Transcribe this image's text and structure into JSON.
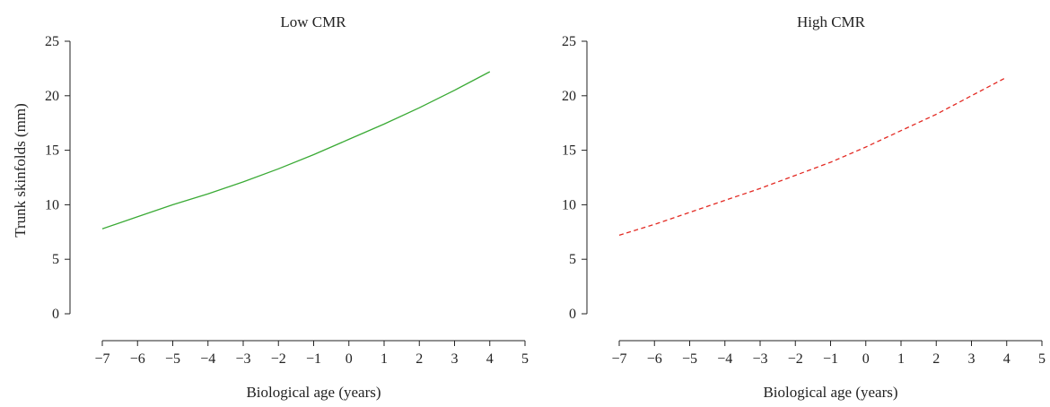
{
  "chart_data": [
    {
      "type": "line",
      "title": "Low CMR",
      "xlabel": "Biological age (years)",
      "ylabel": "Trunk skinfolds (mm)",
      "xlim": [
        -7,
        5
      ],
      "ylim": [
        0,
        25
      ],
      "xticks": [
        "−7",
        "−6",
        "−5",
        "−4",
        "−3",
        "−2",
        "−1",
        "0",
        "1",
        "2",
        "3",
        "4",
        "5"
      ],
      "yticks": [
        "0",
        "5",
        "10",
        "15",
        "20",
        "25"
      ],
      "grid": false,
      "series": [
        {
          "style": "solid",
          "color": "#3aaa35",
          "x": [
            -7,
            -6,
            -5,
            -4,
            -3,
            -2,
            -1,
            0,
            1,
            2,
            3,
            4
          ],
          "y": [
            7.8,
            8.9,
            10.0,
            11.0,
            12.1,
            13.3,
            14.6,
            16.0,
            17.4,
            18.9,
            20.5,
            22.2
          ]
        }
      ]
    },
    {
      "type": "line",
      "title": "High CMR",
      "xlabel": "Biological age (years)",
      "ylabel": "",
      "xlim": [
        -7,
        5
      ],
      "ylim": [
        0,
        25
      ],
      "xticks": [
        "−7",
        "−6",
        "−5",
        "−4",
        "−3",
        "−2",
        "−1",
        "0",
        "1",
        "2",
        "3",
        "4",
        "5"
      ],
      "yticks": [
        "0",
        "5",
        "10",
        "15",
        "20",
        "25"
      ],
      "grid": false,
      "series": [
        {
          "style": "dashed",
          "color": "#e32b24",
          "x": [
            -7,
            -6,
            -5,
            -4,
            -3,
            -2,
            -1,
            0,
            1,
            2,
            3,
            4
          ],
          "y": [
            7.2,
            8.2,
            9.3,
            10.4,
            11.5,
            12.7,
            13.9,
            15.3,
            16.8,
            18.3,
            20.0,
            21.7
          ]
        }
      ]
    }
  ]
}
